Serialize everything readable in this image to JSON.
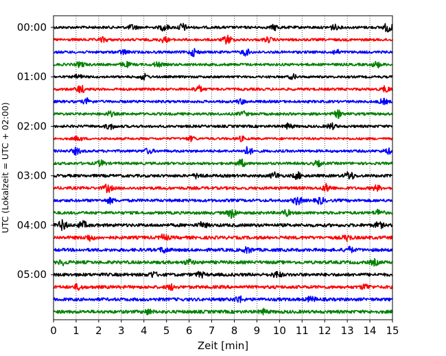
{
  "chart_data": {
    "type": "line",
    "title": "",
    "xlabel": "Zeit  [min]",
    "ylabel": "UTC (Lokalzeit = UTC + 02:00)",
    "xlim": [
      0,
      15
    ],
    "x_ticks": [
      "0",
      "1",
      "2",
      "3",
      "4",
      "5",
      "6",
      "7",
      "8",
      "9",
      "10",
      "11",
      "12",
      "13",
      "14",
      "15"
    ],
    "y_tick_labels": [
      "00:00",
      "01:00",
      "02:00",
      "03:00",
      "04:00",
      "05:00"
    ],
    "grid": "vertical dotted lines at each minute",
    "row_interval_minutes": 15,
    "trace_colors_cycle": [
      "#000000",
      "#ff0000",
      "#0000ff",
      "#008000"
    ],
    "series": [
      {
        "start": "00:00",
        "color": "#000000",
        "amplitude": 0.45,
        "bursts": [
          {
            "x": 3.5,
            "a": 0.8
          },
          {
            "x": 4.9,
            "a": 1.0
          },
          {
            "x": 5.7,
            "a": 1.2
          },
          {
            "x": 9.8,
            "a": 0.8
          },
          {
            "x": 12.4,
            "a": 0.8
          },
          {
            "x": 14.8,
            "a": 1.5
          }
        ]
      },
      {
        "start": "00:15",
        "color": "#ff0000",
        "amplitude": 0.45,
        "bursts": [
          {
            "x": 2.2,
            "a": 0.7
          },
          {
            "x": 4.9,
            "a": 0.8
          },
          {
            "x": 7.7,
            "a": 1.4
          },
          {
            "x": 9.5,
            "a": 0.7
          }
        ]
      },
      {
        "start": "00:30",
        "color": "#0000ff",
        "amplitude": 0.45,
        "bursts": [
          {
            "x": 3.1,
            "a": 0.7
          },
          {
            "x": 6.2,
            "a": 1.2
          },
          {
            "x": 8.5,
            "a": 1.0
          },
          {
            "x": 12.5,
            "a": 0.7
          }
        ]
      },
      {
        "start": "00:45",
        "color": "#008000",
        "amplitude": 0.45,
        "bursts": [
          {
            "x": 1.2,
            "a": 0.8
          },
          {
            "x": 3.2,
            "a": 0.8
          },
          {
            "x": 4.6,
            "a": 0.7
          },
          {
            "x": 14.3,
            "a": 0.9
          }
        ]
      },
      {
        "start": "01:00",
        "color": "#000000",
        "amplitude": 0.4,
        "bursts": [
          {
            "x": 1.1,
            "a": 0.7
          },
          {
            "x": 4.0,
            "a": 0.9
          },
          {
            "x": 10.6,
            "a": 0.7
          }
        ]
      },
      {
        "start": "01:15",
        "color": "#ff0000",
        "amplitude": 0.45,
        "bursts": [
          {
            "x": 1.2,
            "a": 1.2
          },
          {
            "x": 6.4,
            "a": 1.1
          },
          {
            "x": 14.7,
            "a": 0.9
          }
        ]
      },
      {
        "start": "01:30",
        "color": "#0000ff",
        "amplitude": 0.45,
        "bursts": [
          {
            "x": 1.5,
            "a": 0.9
          },
          {
            "x": 8.3,
            "a": 0.7
          },
          {
            "x": 14.6,
            "a": 0.8
          }
        ]
      },
      {
        "start": "01:45",
        "color": "#008000",
        "amplitude": 0.45,
        "bursts": [
          {
            "x": 2.5,
            "a": 0.7
          },
          {
            "x": 8.4,
            "a": 0.7
          },
          {
            "x": 12.6,
            "a": 1.1
          }
        ]
      },
      {
        "start": "02:00",
        "color": "#000000",
        "amplitude": 0.45,
        "bursts": [
          {
            "x": 2.5,
            "a": 0.9
          },
          {
            "x": 10.4,
            "a": 0.8
          },
          {
            "x": 12.3,
            "a": 0.9
          }
        ]
      },
      {
        "start": "02:15",
        "color": "#ff0000",
        "amplitude": 0.4,
        "bursts": [
          {
            "x": 1.1,
            "a": 0.7
          },
          {
            "x": 6.1,
            "a": 0.7
          },
          {
            "x": 8.3,
            "a": 0.7
          }
        ]
      },
      {
        "start": "02:30",
        "color": "#0000ff",
        "amplitude": 0.45,
        "bursts": [
          {
            "x": 1.0,
            "a": 1.0
          },
          {
            "x": 4.2,
            "a": 0.8
          },
          {
            "x": 8.6,
            "a": 1.3
          },
          {
            "x": 14.8,
            "a": 0.8
          }
        ]
      },
      {
        "start": "02:45",
        "color": "#008000",
        "amplitude": 0.45,
        "bursts": [
          {
            "x": 2.1,
            "a": 0.9
          },
          {
            "x": 8.3,
            "a": 1.2
          },
          {
            "x": 11.7,
            "a": 0.8
          }
        ]
      },
      {
        "start": "03:00",
        "color": "#000000",
        "amplitude": 0.5,
        "bursts": [
          {
            "x": 6.4,
            "a": 0.9
          },
          {
            "x": 9.8,
            "a": 1.0
          },
          {
            "x": 10.8,
            "a": 1.0
          },
          {
            "x": 13.1,
            "a": 1.4
          }
        ]
      },
      {
        "start": "03:15",
        "color": "#ff0000",
        "amplitude": 0.5,
        "bursts": [
          {
            "x": 2.4,
            "a": 1.2
          },
          {
            "x": 12.1,
            "a": 1.2
          },
          {
            "x": 14.3,
            "a": 0.8
          }
        ]
      },
      {
        "start": "03:30",
        "color": "#0000ff",
        "amplitude": 0.5,
        "bursts": [
          {
            "x": 2.5,
            "a": 0.8
          },
          {
            "x": 10.8,
            "a": 1.3
          },
          {
            "x": 11.8,
            "a": 1.0
          }
        ]
      },
      {
        "start": "03:45",
        "color": "#008000",
        "amplitude": 0.5,
        "bursts": [
          {
            "x": 7.9,
            "a": 1.6
          },
          {
            "x": 10.3,
            "a": 0.9
          },
          {
            "x": 14.4,
            "a": 1.0
          }
        ]
      },
      {
        "start": "04:00",
        "color": "#000000",
        "amplitude": 0.55,
        "bursts": [
          {
            "x": 0.4,
            "a": 1.5
          },
          {
            "x": 1.3,
            "a": 1.1
          },
          {
            "x": 6.6,
            "a": 0.9
          },
          {
            "x": 14.4,
            "a": 0.9
          }
        ]
      },
      {
        "start": "04:15",
        "color": "#ff0000",
        "amplitude": 0.55,
        "bursts": [
          {
            "x": 1.6,
            "a": 0.9
          },
          {
            "x": 4.9,
            "a": 0.9
          },
          {
            "x": 13.0,
            "a": 0.8
          }
        ]
      },
      {
        "start": "04:30",
        "color": "#0000ff",
        "amplitude": 0.55,
        "bursts": [
          {
            "x": 4.9,
            "a": 0.9
          },
          {
            "x": 8.6,
            "a": 0.9
          },
          {
            "x": 13.1,
            "a": 0.8
          }
        ]
      },
      {
        "start": "04:45",
        "color": "#008000",
        "amplitude": 0.55,
        "bursts": [
          {
            "x": 0.4,
            "a": 0.7
          },
          {
            "x": 6.0,
            "a": 0.8
          },
          {
            "x": 14.2,
            "a": 0.8
          }
        ]
      },
      {
        "start": "05:00",
        "color": "#000000",
        "amplitude": 0.55,
        "bursts": [
          {
            "x": 4.4,
            "a": 0.8
          },
          {
            "x": 6.5,
            "a": 0.8
          },
          {
            "x": 9.9,
            "a": 0.9
          }
        ]
      },
      {
        "start": "05:15",
        "color": "#ff0000",
        "amplitude": 0.55,
        "bursts": [
          {
            "x": 1.1,
            "a": 0.8
          },
          {
            "x": 5.2,
            "a": 0.8
          },
          {
            "x": 13.8,
            "a": 0.8
          }
        ]
      },
      {
        "start": "05:30",
        "color": "#0000ff",
        "amplitude": 0.55,
        "bursts": [
          {
            "x": 8.2,
            "a": 1.0
          },
          {
            "x": 11.4,
            "a": 0.8
          }
        ]
      },
      {
        "start": "05:45",
        "color": "#008000",
        "amplitude": 0.55,
        "bursts": [
          {
            "x": 4.2,
            "a": 0.7
          },
          {
            "x": 9.3,
            "a": 0.7
          }
        ]
      }
    ]
  }
}
